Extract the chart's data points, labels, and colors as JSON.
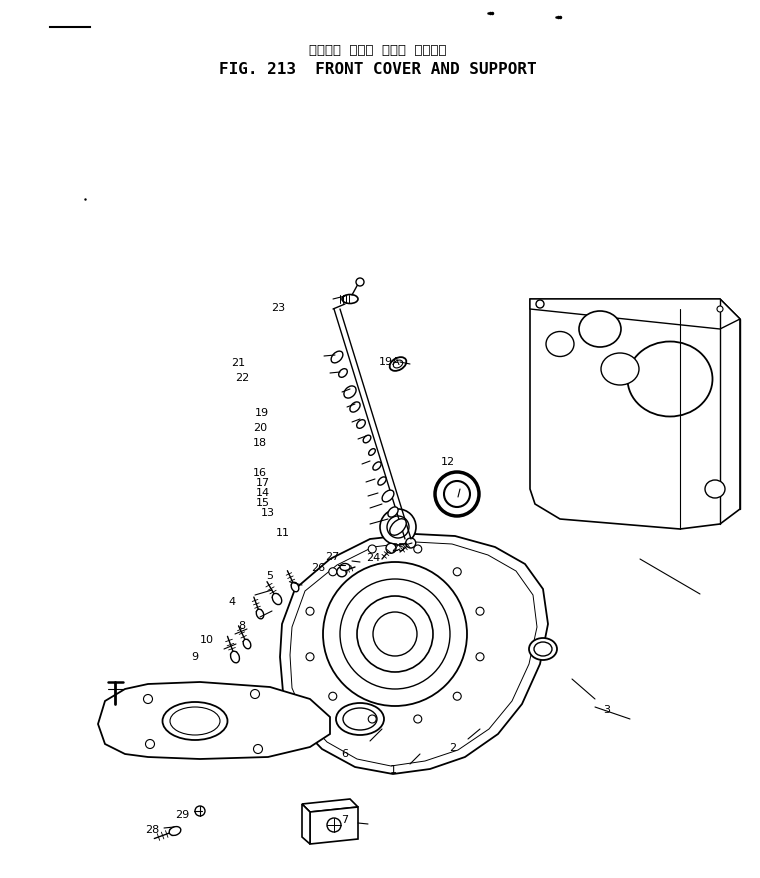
{
  "title_japanese": "フロント  カバー  および  サポート",
  "title_english": "FIG. 213  FRONT COVER AND SUPPORT",
  "bg_color": "#ffffff",
  "lc": "#000000",
  "fig_width": 7.6,
  "fig_height": 8.79,
  "dpi": 100
}
